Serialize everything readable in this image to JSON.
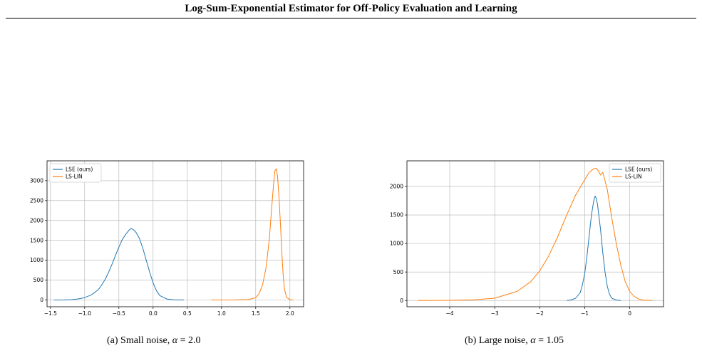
{
  "header": {
    "running_title": "Log-Sum-Exponential Estimator for Off-Policy Evaluation and Learning"
  },
  "figures": [
    {
      "caption_prefix": "(a) Small noise, ",
      "caption_symbol": "α",
      "caption_suffix": " = 2.0"
    },
    {
      "caption_prefix": "(b) Large noise, ",
      "caption_symbol": "α",
      "caption_suffix": " = 1.05"
    }
  ],
  "colors": {
    "lse": "#1f77b4",
    "lslin": "#ff7f0e",
    "grid": "#b0b0b0"
  },
  "chart_data": [
    {
      "type": "line",
      "title": "",
      "xlabel": "",
      "ylabel": "",
      "xlim": [
        -1.55,
        2.2
      ],
      "ylim": [
        -170,
        3500
      ],
      "xticks": [
        -1.5,
        -1.0,
        -0.5,
        0.0,
        0.5,
        1.0,
        1.5,
        2.0
      ],
      "xtick_labels": [
        "−1.5",
        "−1.0",
        "−0.5",
        "0.0",
        "0.5",
        "1.0",
        "1.5",
        "2.0"
      ],
      "yticks": [
        0,
        500,
        1000,
        1500,
        2000,
        2500,
        3000
      ],
      "ytick_labels": [
        "0",
        "500",
        "1000",
        "1500",
        "2000",
        "2500",
        "3000"
      ],
      "grid": true,
      "legend_position": "upper-left",
      "series": [
        {
          "name": "LSE (ours)",
          "x": [
            -1.45,
            -1.3,
            -1.2,
            -1.1,
            -1.0,
            -0.9,
            -0.8,
            -0.75,
            -0.7,
            -0.65,
            -0.6,
            -0.55,
            -0.5,
            -0.45,
            -0.4,
            -0.35,
            -0.32,
            -0.3,
            -0.28,
            -0.25,
            -0.2,
            -0.15,
            -0.1,
            -0.05,
            0.0,
            0.05,
            0.1,
            0.2,
            0.3,
            0.45
          ],
          "y": [
            0,
            2,
            8,
            25,
            60,
            130,
            260,
            380,
            520,
            700,
            900,
            1120,
            1330,
            1520,
            1650,
            1760,
            1800,
            1780,
            1760,
            1700,
            1550,
            1300,
            1000,
            700,
            430,
            230,
            110,
            25,
            4,
            0
          ]
        },
        {
          "name": "LS-LIN",
          "x": [
            0.85,
            1.2,
            1.4,
            1.5,
            1.55,
            1.6,
            1.65,
            1.7,
            1.73,
            1.76,
            1.78,
            1.8,
            1.82,
            1.84,
            1.86,
            1.88,
            1.9,
            1.92,
            1.95,
            2.0,
            2.05
          ],
          "y": [
            0,
            1,
            10,
            60,
            160,
            380,
            800,
            1550,
            2250,
            2900,
            3250,
            3300,
            3100,
            2600,
            1950,
            1250,
            650,
            280,
            70,
            5,
            0
          ]
        }
      ]
    },
    {
      "type": "line",
      "title": "",
      "xlabel": "",
      "ylabel": "",
      "xlim": [
        -4.95,
        0.75
      ],
      "ylim": [
        -110,
        2450
      ],
      "xticks": [
        -4,
        -3,
        -2,
        -1,
        0
      ],
      "xtick_labels": [
        "−4",
        "−3",
        "−2",
        "−1",
        "0"
      ],
      "yticks": [
        0,
        500,
        1000,
        1500,
        2000
      ],
      "ytick_labels": [
        "0",
        "500",
        "1000",
        "1500",
        "2000"
      ],
      "grid": true,
      "legend_position": "upper-right",
      "series": [
        {
          "name": "LSE (ours)",
          "x": [
            -1.4,
            -1.3,
            -1.2,
            -1.1,
            -1.05,
            -1.0,
            -0.95,
            -0.9,
            -0.85,
            -0.8,
            -0.77,
            -0.75,
            -0.72,
            -0.7,
            -0.65,
            -0.6,
            -0.55,
            -0.5,
            -0.45,
            -0.4,
            -0.3,
            -0.2
          ],
          "y": [
            0,
            10,
            40,
            140,
            280,
            480,
            780,
            1150,
            1500,
            1750,
            1830,
            1800,
            1700,
            1580,
            1250,
            850,
            500,
            250,
            110,
            40,
            8,
            0
          ]
        },
        {
          "name": "LS-LIN",
          "x": [
            -4.7,
            -4.0,
            -3.5,
            -3.0,
            -2.5,
            -2.2,
            -2.0,
            -1.8,
            -1.6,
            -1.4,
            -1.2,
            -1.0,
            -0.9,
            -0.8,
            -0.75,
            -0.7,
            -0.65,
            -0.6,
            -0.55,
            -0.5,
            -0.45,
            -0.4,
            -0.3,
            -0.2,
            -0.1,
            0.0,
            0.1,
            0.2,
            0.3,
            0.5
          ],
          "y": [
            0,
            2,
            10,
            40,
            160,
            330,
            520,
            780,
            1120,
            1500,
            1850,
            2120,
            2250,
            2310,
            2320,
            2280,
            2200,
            2250,
            2100,
            1950,
            1700,
            1450,
            1000,
            620,
            330,
            160,
            70,
            25,
            8,
            0
          ]
        }
      ]
    }
  ]
}
